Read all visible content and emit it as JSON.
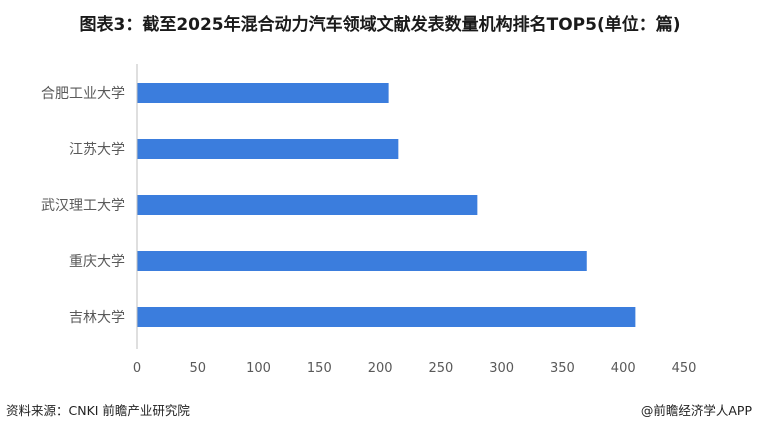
{
  "title": "图表3：截至2025年混合动力汽车领域文献发表数量机构排名TOP5(单位：篇)",
  "footer": {
    "source": "资料来源：CNKI 前瞻产业研究院",
    "brand": "@前瞻经济学人APP"
  },
  "colors": {
    "bar": "#3b7ddd",
    "axis": "#bfbfbf",
    "text": "#595959"
  },
  "chart_data": {
    "type": "bar",
    "orientation": "horizontal",
    "categories": [
      "合肥工业大学",
      "江苏大学",
      "武汉理工大学",
      "重庆大学",
      "吉林大学"
    ],
    "values": [
      207,
      215,
      280,
      370,
      410
    ],
    "xlim": [
      0,
      450
    ],
    "xticks": [
      "0",
      "50",
      "100",
      "150",
      "200",
      "250",
      "300",
      "350",
      "400",
      "450"
    ],
    "grid": false,
    "legend": "none"
  }
}
